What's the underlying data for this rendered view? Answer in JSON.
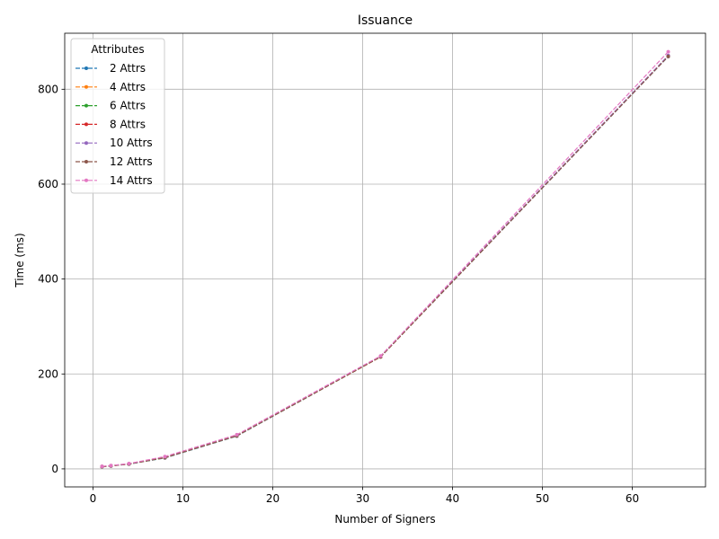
{
  "chart_data": {
    "type": "line",
    "title": "Issuance",
    "xlabel": "Number of Signers",
    "ylabel": "Time (ms)",
    "xlim": [
      -3.15,
      68.15
    ],
    "ylim": [
      -38,
      918
    ],
    "xticks": [
      0,
      10,
      20,
      30,
      40,
      50,
      60
    ],
    "yticks": [
      0,
      200,
      400,
      600,
      800
    ],
    "grid": true,
    "legend_title": "Attributes",
    "legend_position": "top-left",
    "x": [
      1,
      2,
      4,
      8,
      16,
      32,
      64
    ],
    "series": [
      {
        "name": "2 Attrs",
        "color": "#1f77b4",
        "values": [
          4.5,
          6,
          10,
          23,
          69,
          236,
          869
        ]
      },
      {
        "name": "4 Attrs",
        "color": "#ff7f0e",
        "values": [
          4.6,
          6.2,
          10.2,
          23.5,
          69.5,
          236,
          870
        ]
      },
      {
        "name": "6 Attrs",
        "color": "#2ca02c",
        "values": [
          4.7,
          6.3,
          10.3,
          23.6,
          69.6,
          236.5,
          870
        ]
      },
      {
        "name": "8 Attrs",
        "color": "#d62728",
        "values": [
          4.8,
          6.4,
          10.4,
          23.8,
          69.8,
          236.5,
          870
        ]
      },
      {
        "name": "10 Attrs",
        "color": "#9467bd",
        "values": [
          4.9,
          6.5,
          10.5,
          24,
          70,
          237,
          871
        ]
      },
      {
        "name": "12 Attrs",
        "color": "#8c564b",
        "values": [
          5,
          6.6,
          10.6,
          24.2,
          70.2,
          236,
          869
        ]
      },
      {
        "name": "14 Attrs",
        "color": "#e377c2",
        "values": [
          5.2,
          7,
          11.2,
          26,
          72,
          238,
          879
        ]
      }
    ]
  }
}
